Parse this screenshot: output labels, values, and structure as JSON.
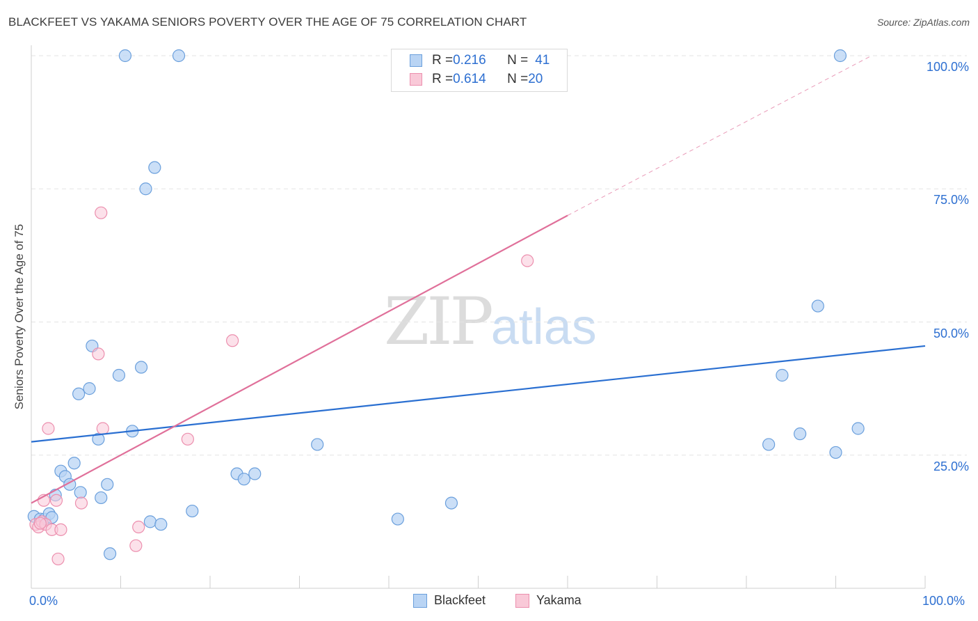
{
  "header": {
    "title": "BLACKFEET VS YAKAMA SENIORS POVERTY OVER THE AGE OF 75 CORRELATION CHART",
    "source": "Source: ZipAtlas.com"
  },
  "watermark": {
    "zip": "ZIP",
    "atlas": "atlas"
  },
  "legend": {
    "rows": [
      {
        "r_label": "R = ",
        "r_value": "0.216",
        "n_label": "N = ",
        "n_value": "41"
      },
      {
        "r_label": "R = ",
        "r_value": "0.614",
        "n_label": "N = ",
        "n_value": "20"
      }
    ]
  },
  "bottom_legend": {
    "series1": "Blackfeet",
    "series2": "Yakama"
  },
  "chart_data": {
    "type": "scatter",
    "title": "BLACKFEET VS YAKAMA SENIORS POVERTY OVER THE AGE OF 75 CORRELATION CHART",
    "xlabel": "",
    "ylabel": "Seniors Poverty Over the Age of 75",
    "xlim": [
      0,
      100
    ],
    "ylim": [
      0,
      105
    ],
    "x_tick_labels": {
      "left": "0.0%",
      "right": "100.0%"
    },
    "y_ticks": [
      {
        "value": 25,
        "label": "25.0%"
      },
      {
        "value": 50,
        "label": "50.0%"
      },
      {
        "value": 75,
        "label": "75.0%"
      },
      {
        "value": 100,
        "label": "100.0%"
      }
    ],
    "grid": true,
    "colors": {
      "blackfeet_fill": "#b9d4f4",
      "blackfeet_stroke": "#6a9fdc",
      "blackfeet_line": "#2a6fd1",
      "yakama_fill": "#f9c9d8",
      "yakama_stroke": "#ec8fae",
      "yakama_line": "#e0709a",
      "tick_text": "#2d6fd1",
      "grid": "#e3e3e3"
    },
    "series": [
      {
        "name": "Blackfeet",
        "r": 0.216,
        "n": 41,
        "trend": {
          "x": [
            0,
            100
          ],
          "y": [
            27.5,
            45.5
          ],
          "dashed_extension_to": null
        },
        "points": [
          [
            0.3,
            13.5
          ],
          [
            1.0,
            13.0
          ],
          [
            1.5,
            13.0
          ],
          [
            2.0,
            14.0
          ],
          [
            2.3,
            13.3
          ],
          [
            2.7,
            17.5
          ],
          [
            3.3,
            22.0
          ],
          [
            3.8,
            21.0
          ],
          [
            4.3,
            19.5
          ],
          [
            4.8,
            23.5
          ],
          [
            5.5,
            18.0
          ],
          [
            5.3,
            36.5
          ],
          [
            6.5,
            37.5
          ],
          [
            6.8,
            45.5
          ],
          [
            7.5,
            28.0
          ],
          [
            7.8,
            17.0
          ],
          [
            8.5,
            19.5
          ],
          [
            8.8,
            6.5
          ],
          [
            9.8,
            40.0
          ],
          [
            10.5,
            100.0
          ],
          [
            11.3,
            29.5
          ],
          [
            12.3,
            41.5
          ],
          [
            12.8,
            75.0
          ],
          [
            13.3,
            12.5
          ],
          [
            13.8,
            79.0
          ],
          [
            14.5,
            12.0
          ],
          [
            16.5,
            100.0
          ],
          [
            18.0,
            14.5
          ],
          [
            23.0,
            21.5
          ],
          [
            23.8,
            20.5
          ],
          [
            25.0,
            21.5
          ],
          [
            32.0,
            27.0
          ],
          [
            41.0,
            13.0
          ],
          [
            47.0,
            16.0
          ],
          [
            82.5,
            27.0
          ],
          [
            84.0,
            40.0
          ],
          [
            86.0,
            29.0
          ],
          [
            88.0,
            53.0
          ],
          [
            90.0,
            25.5
          ],
          [
            90.5,
            100.0
          ],
          [
            92.5,
            30.0
          ]
        ]
      },
      {
        "name": "Yakama",
        "r": 0.614,
        "n": 20,
        "trend": {
          "x": [
            0,
            60
          ],
          "y": [
            16.0,
            70.0
          ],
          "dashed_extension_to": [
            94,
            100
          ]
        },
        "points": [
          [
            0.5,
            12.0
          ],
          [
            0.8,
            11.5
          ],
          [
            1.2,
            12.5
          ],
          [
            1.6,
            12.0
          ],
          [
            1.4,
            16.5
          ],
          [
            1.9,
            30.0
          ],
          [
            2.3,
            11.0
          ],
          [
            2.8,
            16.5
          ],
          [
            3.0,
            5.5
          ],
          [
            3.3,
            11.0
          ],
          [
            5.6,
            16.0
          ],
          [
            7.5,
            44.0
          ],
          [
            7.8,
            70.5
          ],
          [
            8.0,
            30.0
          ],
          [
            11.7,
            8.0
          ],
          [
            12.0,
            11.5
          ],
          [
            17.5,
            28.0
          ],
          [
            22.5,
            46.5
          ],
          [
            55.5,
            61.5
          ],
          [
            1.0,
            12.2
          ]
        ]
      }
    ]
  }
}
